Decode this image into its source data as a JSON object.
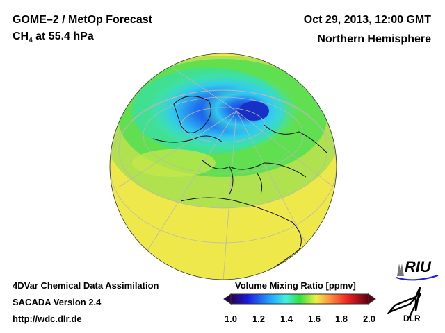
{
  "header": {
    "title": "GOME–2 / MetOp Forecast",
    "species": "CH",
    "species_sub": "4",
    "species_rest": " at 55.4 hPa",
    "date": "Oct 29, 2013, 12:00 GMT",
    "region": "Northern Hemisphere"
  },
  "footer": {
    "line1": "4DVar Chemical Data Assimilation",
    "line2": "SACADA Version 2.4",
    "line3": "http://wdc.dlr.de"
  },
  "colorbar": {
    "title": "Volume Mixing Ratio [ppmv]",
    "ticks": [
      "1.0",
      "1.2",
      "1.4",
      "1.6",
      "1.8",
      "2.0"
    ],
    "range": [
      1.0,
      2.0
    ],
    "colors": [
      "#2a0050",
      "#1a1ae0",
      "#20a0ff",
      "#40f0e0",
      "#30e040",
      "#f0f040",
      "#ff9040",
      "#f02020",
      "#600010"
    ]
  },
  "logos": {
    "riu": "RIU",
    "dlr": "DLR"
  }
}
